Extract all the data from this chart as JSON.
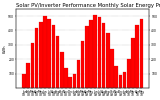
{
  "title": "Solar PV/Inverter Performance Monthly Solar Energy Production",
  "bar_color": "#ff0000",
  "edge_color": "#cc0000",
  "background_color": "#ffffff",
  "plot_bg_color": "#ffffff",
  "grid_color": "#888888",
  "categories": [
    "Jan\n08",
    "Feb\n08",
    "Mar\n08",
    "Apr\n08",
    "May\n08",
    "Jun\n08",
    "Jul\n08",
    "Aug\n08",
    "Sep\n08",
    "Oct\n08",
    "Nov\n08",
    "Dec\n08",
    "Jan\n09",
    "Feb\n09",
    "Mar\n09",
    "Apr\n09",
    "May\n09",
    "Jun\n09",
    "Jul\n09",
    "Aug\n09",
    "Sep\n09",
    "Oct\n09",
    "Nov\n09",
    "Dec\n09",
    "Jan\n10",
    "Feb\n10",
    "Mar\n10",
    "Apr\n10",
    "May\n10"
  ],
  "values": [
    95,
    175,
    310,
    420,
    460,
    500,
    480,
    440,
    360,
    250,
    140,
    80,
    100,
    195,
    330,
    430,
    470,
    510,
    490,
    450,
    380,
    270,
    150,
    90,
    110,
    205,
    345,
    440,
    480
  ],
  "ylim": [
    0,
    550
  ],
  "yticks": [
    100,
    200,
    300,
    400,
    500
  ],
  "title_fontsize": 3.8,
  "tick_fontsize": 2.2,
  "ylabel": "kWh",
  "ylabel_fontsize": 2.8
}
